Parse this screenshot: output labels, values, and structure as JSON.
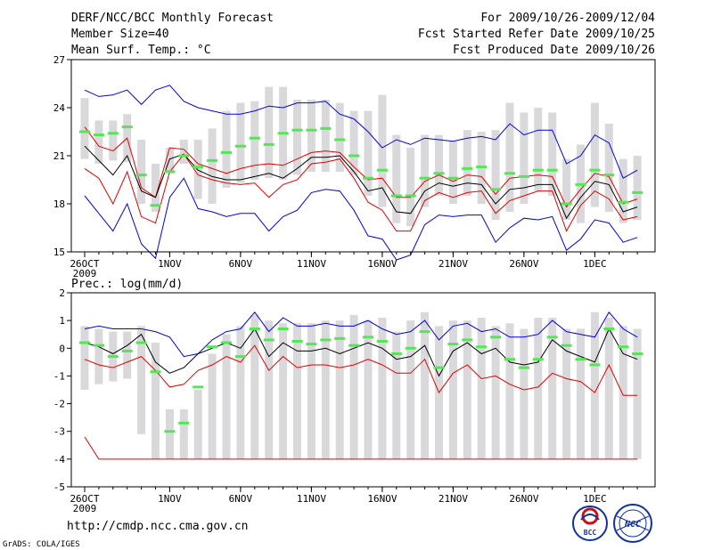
{
  "header": {
    "title": "DERF/NCC/BCC Monthly Forecast",
    "member_size": "Member Size=40",
    "variable1": "Mean Surf. Temp.: °C",
    "period": "For 2009/10/26-2009/12/04",
    "refer_date": "Fcst Started Refer Date 2009/10/25",
    "produced_date": "Fcst Produced Date 2009/10/26"
  },
  "footer": {
    "url": "http://cmdp.ncc.cma.gov.cn",
    "grads": "GrADS: COLA/IGES",
    "logo1_text": "BCC",
    "logo2_text": "NCC"
  },
  "colors": {
    "box": "#d9d9dc",
    "median": "#55e655",
    "mean": "#000000",
    "inner": "#e00000",
    "outer": "#0000e0"
  },
  "chart_data": [
    {
      "type": "box",
      "title": "Mean Surf. Temp.: °C",
      "ylim": [
        15,
        27
      ],
      "yticks": [
        15,
        18,
        21,
        24,
        27
      ],
      "xticks": [
        "26OCT",
        "1NOV",
        "6NOV",
        "11NOV",
        "16NOV",
        "21NOV",
        "26NOV",
        "1DEC"
      ],
      "xtick_index": [
        0,
        6,
        11,
        16,
        21,
        26,
        31,
        36
      ],
      "year_label": "2009",
      "dates": [
        "10/26",
        "10/27",
        "10/28",
        "10/29",
        "10/30",
        "10/31",
        "11/01",
        "11/02",
        "11/03",
        "11/04",
        "11/05",
        "11/06",
        "11/07",
        "11/08",
        "11/09",
        "11/10",
        "11/11",
        "11/12",
        "11/13",
        "11/14",
        "11/15",
        "11/16",
        "11/17",
        "11/18",
        "11/19",
        "11/20",
        "11/21",
        "11/22",
        "11/23",
        "11/24",
        "11/25",
        "11/26",
        "11/27",
        "11/28",
        "11/29",
        "11/30",
        "12/01",
        "12/02",
        "12/03",
        "12/04"
      ],
      "box_low": [
        20.8,
        20.5,
        20.7,
        20.6,
        18.0,
        17.5,
        20.0,
        20.5,
        18.3,
        18.0,
        19.0,
        19.3,
        19.5,
        19.6,
        19.5,
        19.8,
        20.0,
        20.0,
        20.0,
        19.8,
        18.5,
        17.8,
        16.8,
        16.6,
        17.8,
        18.5,
        18.0,
        18.5,
        18.0,
        17.0,
        17.5,
        18.0,
        18.8,
        18.5,
        17.0,
        16.8,
        17.8,
        17.5,
        16.8,
        17.0
      ],
      "box_high": [
        24.6,
        23.2,
        23.2,
        23.6,
        22.0,
        20.5,
        21.5,
        22.0,
        22.0,
        22.7,
        23.8,
        24.3,
        24.4,
        25.3,
        25.3,
        24.5,
        24.5,
        24.5,
        24.3,
        23.8,
        23.8,
        24.8,
        22.3,
        21.5,
        22.3,
        22.3,
        21.9,
        22.6,
        22.5,
        22.6,
        24.3,
        23.7,
        24.0,
        23.7,
        20.8,
        21.7,
        24.3,
        23.0,
        20.8,
        21.0
      ],
      "median": [
        22.5,
        22.3,
        22.4,
        22.8,
        19.8,
        17.9,
        20.0,
        21.0,
        20.3,
        20.7,
        21.2,
        21.6,
        22.1,
        21.7,
        22.4,
        22.6,
        22.6,
        22.7,
        22.0,
        21.0,
        19.6,
        20.1,
        18.5,
        18.5,
        19.6,
        19.9,
        19.6,
        20.2,
        20.3,
        18.9,
        19.9,
        19.7,
        20.1,
        20.1,
        18.0,
        19.2,
        20.1,
        19.8,
        18.1,
        18.7
      ],
      "series": [
        {
          "name": "outer-upper",
          "color": "outer",
          "values": [
            25.1,
            24.7,
            24.8,
            25.1,
            24.2,
            25.1,
            25.4,
            24.4,
            24.0,
            23.8,
            23.6,
            23.6,
            23.8,
            24.1,
            24.0,
            24.3,
            24.3,
            24.4,
            23.6,
            23.3,
            22.5,
            21.5,
            22.0,
            21.7,
            22.1,
            22.0,
            21.9,
            22.1,
            22.2,
            22.0,
            23.0,
            22.3,
            22.6,
            22.6,
            20.5,
            21.0,
            22.3,
            21.8,
            19.6,
            20.1
          ]
        },
        {
          "name": "inner-upper",
          "color": "inner",
          "values": [
            22.8,
            21.6,
            21.3,
            22.1,
            19.0,
            18.4,
            21.5,
            21.4,
            20.5,
            20.2,
            19.9,
            20.2,
            20.4,
            20.5,
            20.4,
            20.8,
            21.2,
            21.3,
            21.2,
            20.3,
            19.5,
            19.6,
            18.4,
            18.4,
            19.4,
            19.8,
            19.4,
            19.8,
            19.7,
            18.6,
            19.6,
            19.7,
            19.8,
            19.7,
            17.8,
            18.9,
            19.9,
            19.7,
            18.0,
            18.3
          ]
        },
        {
          "name": "mean",
          "color": "mean",
          "values": [
            21.6,
            20.7,
            19.8,
            21.0,
            18.8,
            18.4,
            20.8,
            21.1,
            20.1,
            19.7,
            19.5,
            19.5,
            19.7,
            19.9,
            19.6,
            20.2,
            20.9,
            20.9,
            21.0,
            20.0,
            18.8,
            19.0,
            17.5,
            17.4,
            18.8,
            19.3,
            19.1,
            19.3,
            19.2,
            18.0,
            18.9,
            19.0,
            19.2,
            19.2,
            17.1,
            18.4,
            19.4,
            19.2,
            17.5,
            17.8
          ]
        },
        {
          "name": "inner-lower",
          "color": "inner",
          "values": [
            20.2,
            19.6,
            18.0,
            20.0,
            17.2,
            16.8,
            20.0,
            21.1,
            19.8,
            19.5,
            19.3,
            19.2,
            19.3,
            18.4,
            19.2,
            19.5,
            20.5,
            20.6,
            20.8,
            19.6,
            18.1,
            17.6,
            16.3,
            16.3,
            18.2,
            18.7,
            18.4,
            18.7,
            18.8,
            17.4,
            18.2,
            18.5,
            18.8,
            18.8,
            16.3,
            17.9,
            18.8,
            18.3,
            17.0,
            17.2
          ]
        },
        {
          "name": "outer-lower",
          "color": "outer",
          "values": [
            18.5,
            17.4,
            16.3,
            18.0,
            15.5,
            14.6,
            18.4,
            19.6,
            17.7,
            17.5,
            17.2,
            17.4,
            17.4,
            16.3,
            17.2,
            17.6,
            18.7,
            18.9,
            18.8,
            17.6,
            16.0,
            15.8,
            14.5,
            14.8,
            16.7,
            17.3,
            17.2,
            17.3,
            17.3,
            15.6,
            16.5,
            17.1,
            17.0,
            17.2,
            15.1,
            15.8,
            17.0,
            16.8,
            15.6,
            15.9
          ]
        }
      ]
    },
    {
      "type": "box",
      "title": "Prec.: log(mm/d)",
      "ylim": [
        -5,
        2
      ],
      "yticks": [
        -5,
        -4,
        -3,
        -2,
        -1,
        0,
        1,
        2
      ],
      "xticks": [
        "26OCT",
        "1NOV",
        "6NOV",
        "11NOV",
        "16NOV",
        "21NOV",
        "26NOV",
        "1DEC"
      ],
      "xtick_index": [
        0,
        6,
        11,
        16,
        21,
        26,
        31,
        36
      ],
      "year_label": "2009",
      "dates": [
        "10/26",
        "10/27",
        "10/28",
        "10/29",
        "10/30",
        "10/31",
        "11/01",
        "11/02",
        "11/03",
        "11/04",
        "11/05",
        "11/06",
        "11/07",
        "11/08",
        "11/09",
        "11/10",
        "11/11",
        "11/12",
        "11/13",
        "11/14",
        "11/15",
        "11/16",
        "11/17",
        "11/18",
        "11/19",
        "11/20",
        "11/21",
        "11/22",
        "11/23",
        "11/24",
        "11/25",
        "11/26",
        "11/27",
        "11/28",
        "11/29",
        "11/30",
        "12/01",
        "12/02",
        "12/03",
        "12/04"
      ],
      "box_low": [
        -1.5,
        -1.3,
        -1.2,
        -1.1,
        -3.1,
        -4.0,
        -4.0,
        -4.0,
        -4.0,
        -4.0,
        -4.0,
        -4.0,
        -4.0,
        -4.0,
        -4.0,
        -4.0,
        -4.0,
        -4.0,
        -4.0,
        -4.0,
        -4.0,
        -4.0,
        -4.0,
        -4.0,
        -4.0,
        -4.0,
        -4.0,
        -4.0,
        -4.0,
        -4.0,
        -4.0,
        -4.0,
        -4.0,
        -4.0,
        -4.0,
        -4.0,
        -4.0,
        -4.0,
        -4.0,
        -4.0
      ],
      "box_high": [
        0.8,
        0.7,
        0.6,
        0.6,
        0.8,
        0.2,
        -2.2,
        -2.2,
        -1.5,
        -0.2,
        0.5,
        0.8,
        1.2,
        1.0,
        0.9,
        0.9,
        0.9,
        1.0,
        1.0,
        1.2,
        1.0,
        1.1,
        0.6,
        1.0,
        1.3,
        0.8,
        1.0,
        1.0,
        1.1,
        0.8,
        0.9,
        0.7,
        1.1,
        1.1,
        0.7,
        0.7,
        1.3,
        1.1,
        0.8,
        0.7
      ],
      "median": [
        0.2,
        0.1,
        -0.3,
        -0.1,
        0.2,
        -0.85,
        -3.0,
        -2.7,
        -1.4,
        0.05,
        0.2,
        -0.3,
        0.7,
        0.3,
        0.7,
        0.25,
        0.15,
        0.3,
        0.35,
        0.1,
        0.4,
        0.25,
        -0.2,
        0.0,
        0.6,
        -0.7,
        0.15,
        0.3,
        0.05,
        0.4,
        -0.4,
        -0.7,
        -0.4,
        0.4,
        0.1,
        -0.4,
        -0.6,
        0.7,
        0.05,
        -0.2
      ],
      "series": [
        {
          "name": "outer-upper",
          "color": "outer",
          "values": [
            0.7,
            0.8,
            0.7,
            0.7,
            0.7,
            0.6,
            0.4,
            -0.3,
            -0.2,
            0.3,
            0.6,
            0.7,
            1.3,
            0.6,
            1.1,
            0.8,
            0.8,
            0.9,
            0.8,
            0.8,
            1.0,
            0.7,
            0.5,
            0.6,
            1.0,
            0.3,
            0.8,
            0.9,
            0.6,
            0.7,
            0.4,
            0.4,
            0.5,
            1.0,
            0.6,
            0.5,
            0.4,
            1.3,
            0.7,
            0.4
          ]
        },
        {
          "name": "mean",
          "color": "mean",
          "values": [
            0.2,
            0.05,
            -0.2,
            0.1,
            0.5,
            -0.5,
            -0.9,
            -0.7,
            -0.2,
            0.0,
            0.2,
            0.0,
            0.7,
            -0.3,
            0.2,
            -0.1,
            -0.1,
            0.0,
            -0.2,
            0.0,
            0.2,
            0.0,
            -0.4,
            -0.3,
            0.1,
            -1.0,
            -0.1,
            0.2,
            -0.2,
            0.0,
            -0.5,
            -0.6,
            -0.5,
            0.3,
            -0.1,
            -0.3,
            -0.5,
            0.7,
            -0.2,
            -0.4
          ]
        },
        {
          "name": "inner-lower",
          "color": "inner",
          "values": [
            -0.4,
            -0.6,
            -0.7,
            -0.5,
            -0.3,
            -0.8,
            -1.4,
            -1.3,
            -0.8,
            -0.6,
            -0.3,
            -0.5,
            0.1,
            -0.8,
            -0.3,
            -0.7,
            -0.6,
            -0.6,
            -0.7,
            -0.6,
            -0.4,
            -0.6,
            -0.9,
            -0.9,
            -0.4,
            -1.6,
            -0.9,
            -0.6,
            -1.1,
            -1.0,
            -1.3,
            -1.5,
            -1.4,
            -0.9,
            -1.1,
            -1.2,
            -1.6,
            -0.6,
            -1.7,
            -1.7
          ]
        },
        {
          "name": "outer-lower",
          "color": "inner",
          "values": [
            -3.2,
            -4.0,
            -4.0,
            -4.0,
            -4.0,
            -4.0,
            -4.0,
            -4.0,
            -4.0,
            -4.0,
            -4.0,
            -4.0,
            -4.0,
            -4.0,
            -4.0,
            -4.0,
            -4.0,
            -4.0,
            -4.0,
            -4.0,
            -4.0,
            -4.0,
            -4.0,
            -4.0,
            -4.0,
            -4.0,
            -4.0,
            -4.0,
            -4.0,
            -4.0,
            -4.0,
            -4.0,
            -4.0,
            -4.0,
            -4.0,
            -4.0,
            -4.0,
            -4.0,
            -4.0,
            -4.0
          ]
        }
      ]
    }
  ]
}
